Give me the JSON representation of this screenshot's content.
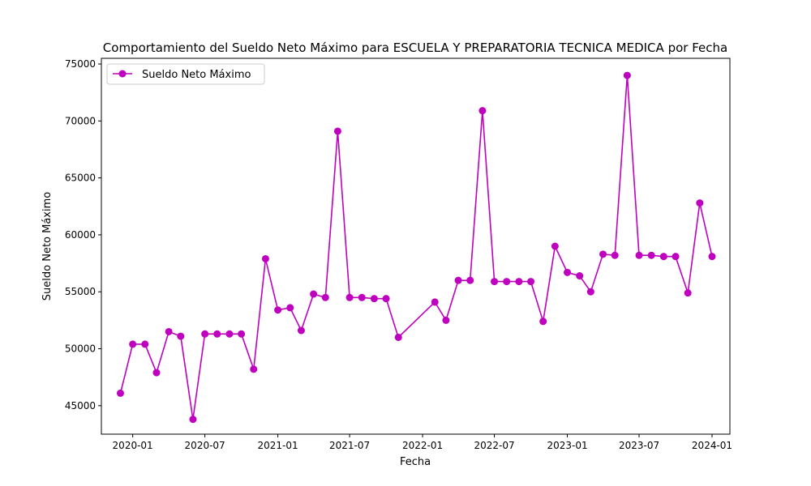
{
  "chart_data": {
    "type": "line",
    "title": "Comportamiento del Sueldo Neto Máximo para ESCUELA Y PREPARATORIA TECNICA MEDICA por Fecha",
    "xlabel": "Fecha",
    "ylabel": "Sueldo Neto Máximo",
    "x_tick_labels": [
      "2020-01",
      "2020-07",
      "2021-01",
      "2021-07",
      "2022-01",
      "2022-07",
      "2023-01",
      "2023-07",
      "2024-01"
    ],
    "y_ticks": [
      45000,
      50000,
      55000,
      60000,
      65000,
      70000,
      75000
    ],
    "ylim": [
      42500,
      75500
    ],
    "xlim": [
      "2019-10-14",
      "2024-02-15"
    ],
    "grid": false,
    "legend_position": "upper-left",
    "color": "#bf00bf",
    "series": [
      {
        "name": "Sueldo Neto Máximo",
        "x": [
          "2019-12-01",
          "2020-01-01",
          "2020-02-01",
          "2020-03-01",
          "2020-04-01",
          "2020-05-01",
          "2020-06-01",
          "2020-07-01",
          "2020-08-01",
          "2020-09-01",
          "2020-10-01",
          "2020-11-01",
          "2020-12-01",
          "2021-01-01",
          "2021-02-01",
          "2021-03-01",
          "2021-04-01",
          "2021-05-01",
          "2021-06-01",
          "2021-07-01",
          "2021-08-01",
          "2021-09-01",
          "2021-10-01",
          "2021-11-01",
          "2022-02-01",
          "2022-03-01",
          "2022-04-01",
          "2022-05-01",
          "2022-06-01",
          "2022-07-01",
          "2022-08-01",
          "2022-09-01",
          "2022-10-01",
          "2022-11-01",
          "2022-12-01",
          "2023-01-01",
          "2023-02-01",
          "2023-03-01",
          "2023-04-01",
          "2023-05-01",
          "2023-06-01",
          "2023-07-01",
          "2023-08-01",
          "2023-09-01",
          "2023-10-01",
          "2023-11-01",
          "2023-12-01",
          "2024-01-01"
        ],
        "values": [
          46100,
          50400,
          50400,
          47900,
          51500,
          51100,
          43800,
          51300,
          51300,
          51300,
          51300,
          48200,
          57900,
          53400,
          53600,
          51600,
          54800,
          54500,
          69100,
          54500,
          54500,
          54400,
          54400,
          51000,
          54100,
          52500,
          56000,
          56000,
          70900,
          55900,
          55900,
          55900,
          55900,
          52400,
          59000,
          56700,
          56400,
          55000,
          58300,
          58200,
          74000,
          58200,
          58200,
          58100,
          58100,
          54900,
          62800,
          58100
        ]
      }
    ]
  }
}
